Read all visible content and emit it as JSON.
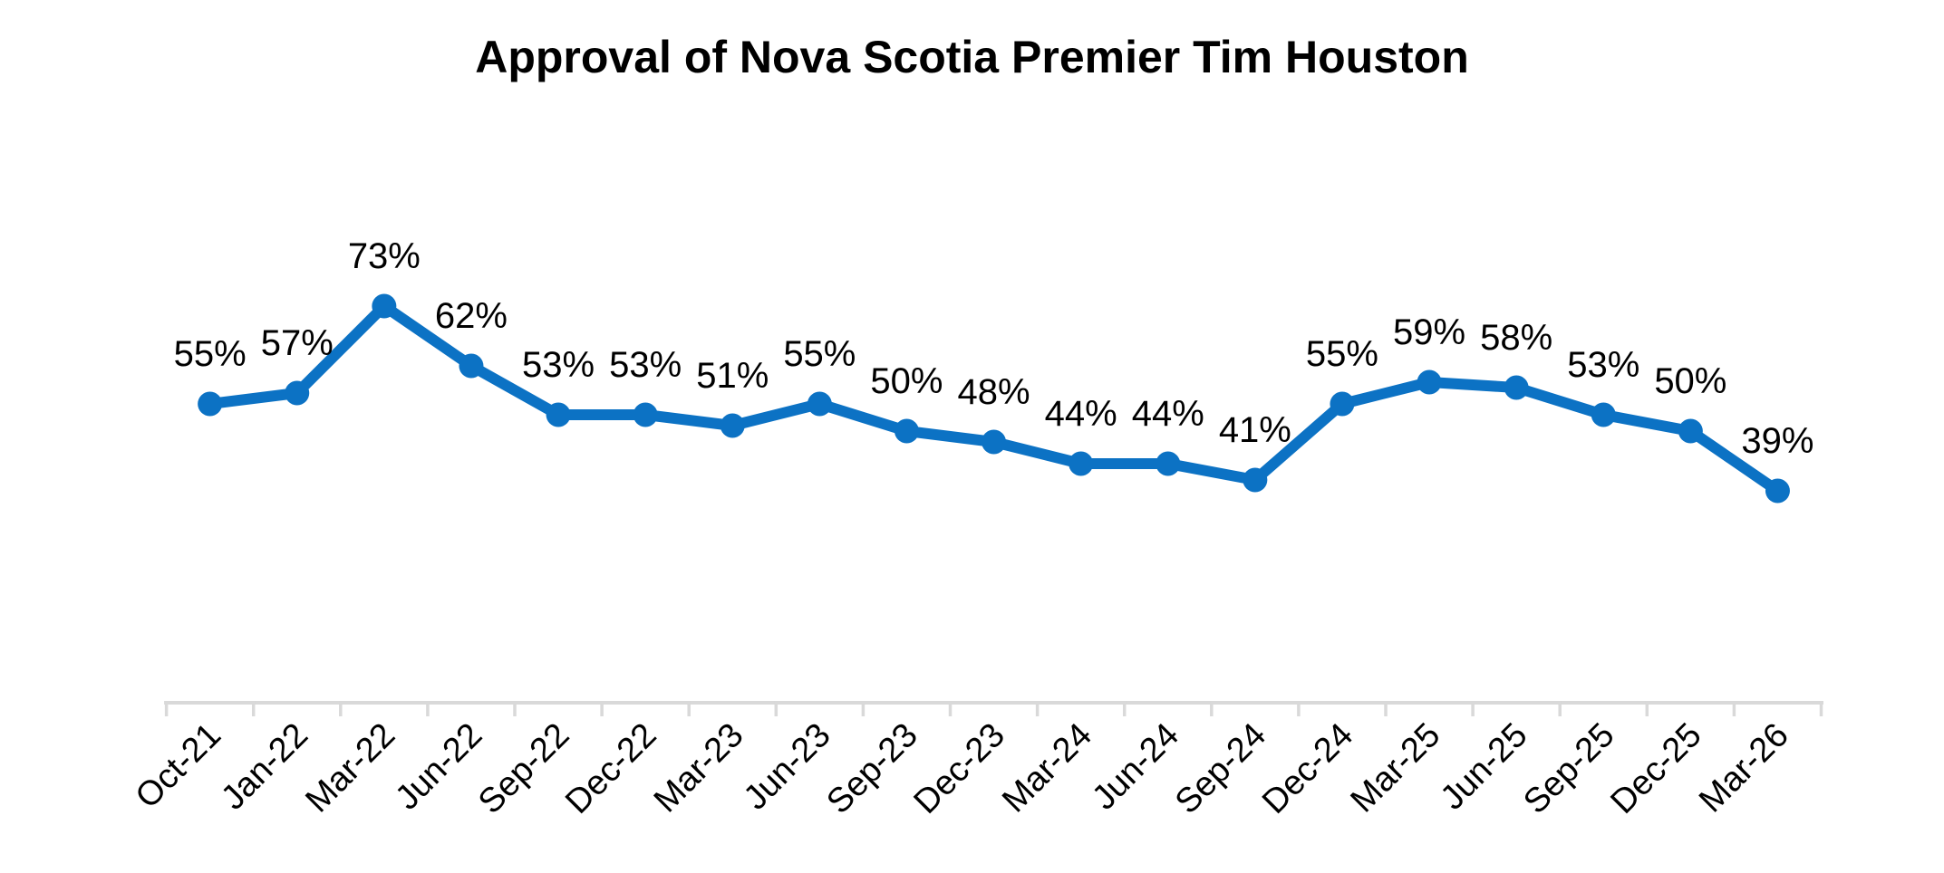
{
  "page": {
    "background_color": "#ffffff"
  },
  "chart_data": {
    "type": "line",
    "title": "Approval of Nova Scotia Premier Tim Houston",
    "categories": [
      "Oct-21",
      "Jan-22",
      "Mar-22",
      "Jun-22",
      "Sep-22",
      "Dec-22",
      "Mar-23",
      "Jun-23",
      "Sep-23",
      "Dec-23",
      "Mar-24",
      "Jun-24",
      "Sep-24",
      "Dec-24",
      "Mar-25",
      "Jun-25",
      "Sep-25",
      "Dec-25",
      "Mar-26"
    ],
    "values": [
      55,
      57,
      73,
      62,
      53,
      53,
      51,
      55,
      50,
      48,
      44,
      44,
      41,
      55,
      59,
      58,
      53,
      50,
      39
    ],
    "data_labels": [
      "55%",
      "57%",
      "73%",
      "62%",
      "53%",
      "53%",
      "51%",
      "55%",
      "50%",
      "48%",
      "44%",
      "44%",
      "41%",
      "55%",
      "59%",
      "58%",
      "53%",
      "50%",
      "39%"
    ],
    "xlabel": "",
    "ylabel": "",
    "ylim": [
      0,
      100
    ],
    "grid": false,
    "legend": "none",
    "y_axis_visible": false,
    "x_axis": {
      "label_rotation_deg": -45,
      "tick_marks": "between-categories"
    },
    "colors": {
      "series_line": "#0c72c4",
      "series_marker": "#0c72c4",
      "data_label_text": "#000000",
      "axis_line": "#d9d9d9",
      "axis_tick": "#d9d9d9",
      "axis_label_text": "#000000",
      "title_text": "#000000"
    }
  }
}
